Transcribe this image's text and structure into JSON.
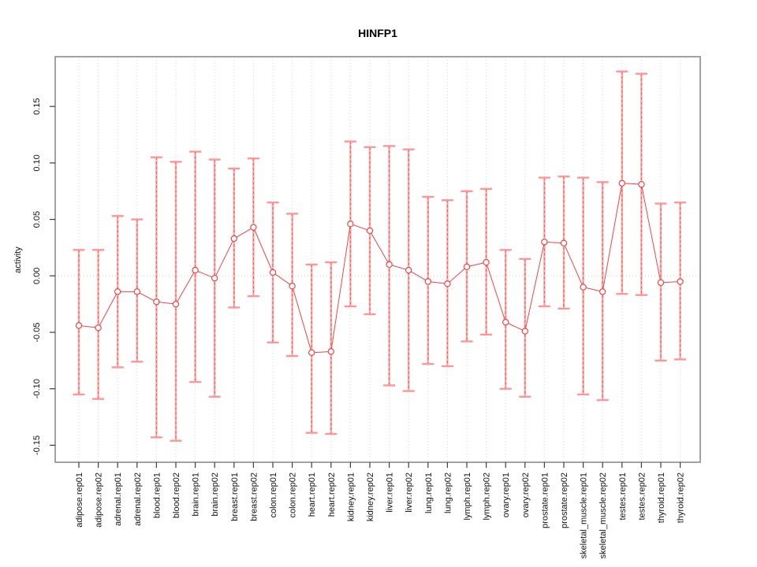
{
  "title": "HINFP1",
  "chart_data": {
    "type": "errorbar",
    "title": "HINFP1",
    "xlabel": "",
    "ylabel": "activity",
    "grid": "vertical dotted gridline per category; dotted horizontal line at y=0; outer box frame",
    "legend": "none",
    "ylim": [
      -0.165,
      0.194
    ],
    "yticks": [
      {
        "value": -0.15,
        "label": "-0.15"
      },
      {
        "value": -0.1,
        "label": "-0.10"
      },
      {
        "value": -0.05,
        "label": "-0.05"
      },
      {
        "value": 0.0,
        "label": "0.00"
      },
      {
        "value": 0.05,
        "label": "0.05"
      },
      {
        "value": 0.1,
        "label": "0.10"
      },
      {
        "value": 0.15,
        "label": "0.15"
      }
    ],
    "categories": [
      "adipose.rep01",
      "adipose.rep02",
      "adrenal.rep01",
      "adrenal.rep02",
      "blood.rep01",
      "blood.rep02",
      "brain.rep01",
      "brain.rep02",
      "breast.rep01",
      "breast.rep02",
      "colon.rep01",
      "colon.rep02",
      "heart.rep01",
      "heart.rep02",
      "kidney.rep01",
      "kidney.rep02",
      "liver.rep01",
      "liver.rep02",
      "lung.rep01",
      "lung.rep02",
      "lymph.rep01",
      "lymph.rep02",
      "ovary.rep01",
      "ovary.rep02",
      "prostate.rep01",
      "prostate.rep02",
      "skeletal_muscle.rep01",
      "skeletal_muscle.rep02",
      "testes.rep01",
      "testes.rep02",
      "thyroid.rep01",
      "thyroid.rep02"
    ],
    "series": [
      {
        "name": "activity",
        "values": [
          -0.044,
          -0.046,
          -0.014,
          -0.014,
          -0.023,
          -0.025,
          0.005,
          -0.002,
          0.033,
          0.043,
          0.003,
          -0.009,
          -0.068,
          -0.067,
          0.046,
          0.04,
          0.01,
          0.005,
          -0.005,
          -0.007,
          0.008,
          0.012,
          -0.041,
          -0.049,
          0.03,
          0.029,
          -0.01,
          -0.014,
          0.082,
          0.081,
          -0.006,
          -0.005
        ],
        "upper": [
          0.023,
          0.023,
          0.053,
          0.05,
          0.105,
          0.101,
          0.11,
          0.103,
          0.095,
          0.104,
          0.065,
          0.055,
          0.01,
          0.012,
          0.119,
          0.114,
          0.115,
          0.112,
          0.07,
          0.067,
          0.075,
          0.077,
          0.023,
          0.015,
          0.087,
          0.088,
          0.087,
          0.083,
          0.181,
          0.179,
          0.064,
          0.065
        ],
        "lower": [
          -0.105,
          -0.109,
          -0.081,
          -0.076,
          -0.143,
          -0.146,
          -0.094,
          -0.107,
          -0.028,
          -0.018,
          -0.059,
          -0.071,
          -0.139,
          -0.14,
          -0.027,
          -0.034,
          -0.097,
          -0.102,
          -0.078,
          -0.08,
          -0.058,
          -0.052,
          -0.1,
          -0.107,
          -0.027,
          -0.029,
          -0.105,
          -0.11,
          -0.016,
          -0.017,
          -0.075,
          -0.074
        ]
      }
    ],
    "colors": {
      "point": "#ef4545",
      "line": "#ef4545",
      "stem": "#ffa6a6",
      "cap": "#ff9595",
      "dash_overlay": "#ef4545",
      "grid": "#dadada",
      "zero_line": "#cfcfcf",
      "frame": "#8a8a8a",
      "tick": "#3c3c3c",
      "text": "#111111"
    }
  }
}
